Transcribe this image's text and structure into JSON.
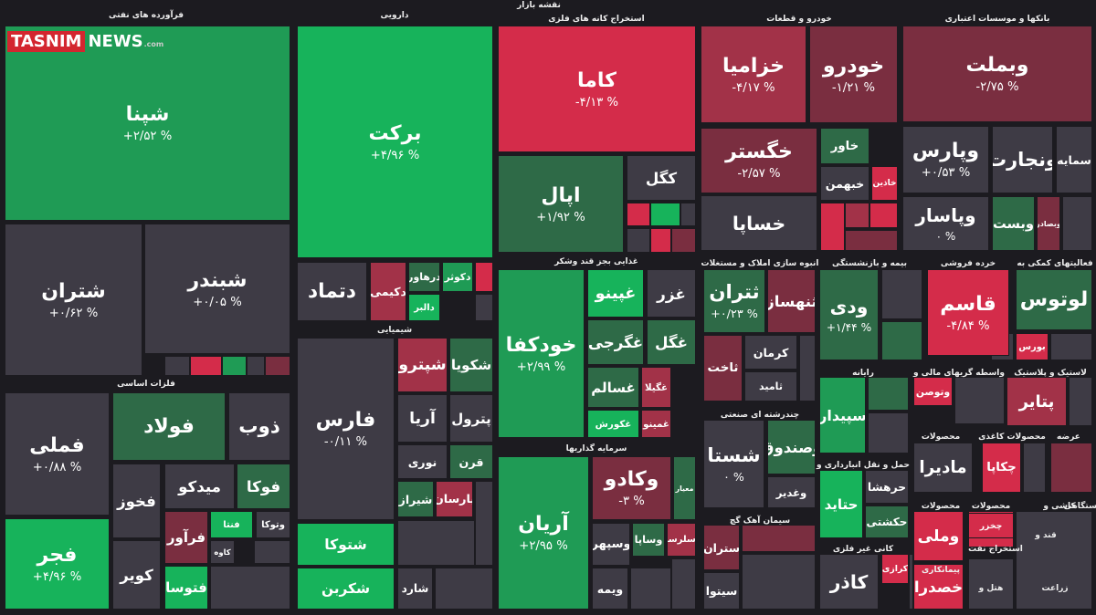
{
  "title": "نقشه بازار",
  "watermark": {
    "brand": "TASNIM",
    "suffix": "NEWS",
    "domain": ".com"
  },
  "sectors": [
    {
      "name": "فرآورده های نفتی",
      "tiles": [
        {
          "name": "شپنا",
          "change": "+۲/۵۲ %"
        },
        {
          "name": "شتران",
          "change": "+۰/۶۲ %"
        },
        {
          "name": "شبندر",
          "change": "+۰/۰۵ %"
        }
      ]
    },
    {
      "name": "دارویی",
      "tiles": [
        {
          "name": "برکت",
          "change": "+۴/۹۶ %"
        },
        {
          "name": "دتماد"
        },
        {
          "name": "دکیمی"
        },
        {
          "name": "درهاور"
        },
        {
          "name": "دکوثر"
        },
        {
          "name": "دالبر"
        }
      ]
    },
    {
      "name": "فلزات اساسی",
      "tiles": [
        {
          "name": "فملی",
          "change": "+۰/۸۸ %"
        },
        {
          "name": "فجر",
          "change": "+۴/۹۶ %"
        },
        {
          "name": "فولاد"
        },
        {
          "name": "ذوب"
        },
        {
          "name": "فخوز"
        },
        {
          "name": "میدکو"
        },
        {
          "name": "فوکا"
        },
        {
          "name": "فرآور"
        },
        {
          "name": "فنتا"
        },
        {
          "name": "وتوکا"
        },
        {
          "name": "کاوه"
        },
        {
          "name": "فتوسا"
        },
        {
          "name": "کویر"
        }
      ]
    },
    {
      "name": "شیمیایی",
      "tiles": [
        {
          "name": "فارس",
          "change": "-۰/۱۱ %"
        },
        {
          "name": "شتوکا"
        },
        {
          "name": "شکربن"
        },
        {
          "name": "شپترو"
        },
        {
          "name": "شکویا"
        },
        {
          "name": "آریا"
        },
        {
          "name": "پترول"
        },
        {
          "name": "نوری"
        },
        {
          "name": "قرن"
        },
        {
          "name": "شیراز"
        },
        {
          "name": "پارسان"
        },
        {
          "name": "شارد"
        }
      ]
    },
    {
      "name": "استخراج کانه های فلزی",
      "tiles": [
        {
          "name": "کاما",
          "change": "-۴/۱۳ %"
        },
        {
          "name": "اپال",
          "change": "+۱/۹۲ %"
        },
        {
          "name": "کگل"
        }
      ]
    },
    {
      "name": "غذایی بجز قند وشکر",
      "tiles": [
        {
          "name": "خودکفا",
          "change": "+۲/۹۹ %"
        },
        {
          "name": "غپینو"
        },
        {
          "name": "غزر"
        },
        {
          "name": "غگرجی"
        },
        {
          "name": "غگل"
        },
        {
          "name": "غسالم"
        },
        {
          "name": "غگیلا"
        },
        {
          "name": "غکورش"
        },
        {
          "name": "غمینو"
        }
      ]
    },
    {
      "name": "سرمایه گذاریها",
      "tiles": [
        {
          "name": "آریان",
          "change": "+۲/۹۵ %"
        },
        {
          "name": "وکادو",
          "change": "-۳ %"
        },
        {
          "name": "معیار"
        },
        {
          "name": "وسپهر"
        },
        {
          "name": "وساپا"
        },
        {
          "name": "وسلرستا"
        },
        {
          "name": "ویمه"
        }
      ]
    },
    {
      "name": "خودرو و قطعات",
      "tiles": [
        {
          "name": "خزامیا",
          "change": "-۴/۱۷ %"
        },
        {
          "name": "خودرو",
          "change": "-۱/۲۱ %"
        },
        {
          "name": "خگستر",
          "change": "-۲/۵۷ %"
        },
        {
          "name": "خاور"
        },
        {
          "name": "خساپا"
        },
        {
          "name": "خبهمن"
        },
        {
          "name": "خاذین"
        }
      ]
    },
    {
      "name": "بانکها و موسسات اعتباری",
      "tiles": [
        {
          "name": "وبملت",
          "change": "-۲/۷۵ %"
        },
        {
          "name": "وپارس",
          "change": "+۰/۵۳ %"
        },
        {
          "name": "ونجارت"
        },
        {
          "name": "سمایه"
        },
        {
          "name": "وپاسار",
          "change": "۰ %"
        },
        {
          "name": "وبست"
        },
        {
          "name": "وبصادر"
        }
      ]
    },
    {
      "name": "انبوه سازی املاک و مستغلات",
      "tiles": [
        {
          "name": "ثتران",
          "change": "+۰/۲۳ %"
        },
        {
          "name": "ثنهساز"
        },
        {
          "name": "ثاخت"
        },
        {
          "name": "کرمان"
        },
        {
          "name": "ثامید"
        }
      ]
    },
    {
      "name": "چندرشته ای صنعتی",
      "tiles": [
        {
          "name": "شستا",
          "change": "۰ %"
        },
        {
          "name": "وصندوق"
        },
        {
          "name": "وغدیر"
        }
      ]
    },
    {
      "name": "سیمان آهک گچ",
      "tiles": [
        {
          "name": "ستران"
        },
        {
          "name": "سیتوا"
        }
      ]
    },
    {
      "name": "بیمه و بازنشستگی",
      "tiles": [
        {
          "name": "ودی",
          "change": "+۱/۴۴ %"
        }
      ]
    },
    {
      "name": "خرده فروشی",
      "tiles": [
        {
          "name": "قاسم",
          "change": "-۴/۸۴ %"
        }
      ]
    },
    {
      "name": "فعالیتهای کمکی به",
      "tiles": [
        {
          "name": "لوتوس"
        },
        {
          "name": "بورس"
        }
      ]
    },
    {
      "name": "رایانه",
      "tiles": [
        {
          "name": "سپیدار"
        }
      ]
    },
    {
      "name": "واسطه گریهای مالی و",
      "tiles": [
        {
          "name": "وتوصن"
        }
      ]
    },
    {
      "name": "لاستیک و پلاستیک",
      "tiles": [
        {
          "name": "پتایر"
        }
      ]
    },
    {
      "name": "حمل و نقل انبارداری و",
      "tiles": [
        {
          "name": "حتاید"
        },
        {
          "name": "حرهشا"
        },
        {
          "name": "حکشتی"
        }
      ]
    },
    {
      "name": "کانی غیر فلزی",
      "tiles": [
        {
          "name": "کاذر"
        },
        {
          "name": "کرازی"
        }
      ]
    },
    {
      "name": "محصولات",
      "tiles": [
        {
          "name": "مادیرا"
        }
      ]
    },
    {
      "name": "محصولات کاغذی",
      "tiles": [
        {
          "name": "چکاپا"
        }
      ]
    },
    {
      "name": "عرضه",
      "tiles": []
    },
    {
      "name": "محصولات",
      "tiles": [
        {
          "name": "وملی"
        },
        {
          "name": "خصدرا"
        }
      ]
    },
    {
      "name": "محصولات",
      "tiles": [
        {
          "name": "چخزر"
        }
      ]
    },
    {
      "name": "استخراج نفت",
      "tiles": []
    },
    {
      "name": "کاشی و",
      "tiles": []
    },
    {
      "name": "دستگاهی",
      "tiles": []
    },
    {
      "name": "قند و",
      "tiles": []
    },
    {
      "name": "پیمانکاری",
      "tiles": []
    },
    {
      "name": "هتل و",
      "tiles": []
    },
    {
      "name": "زراعت",
      "tiles": []
    }
  ]
}
